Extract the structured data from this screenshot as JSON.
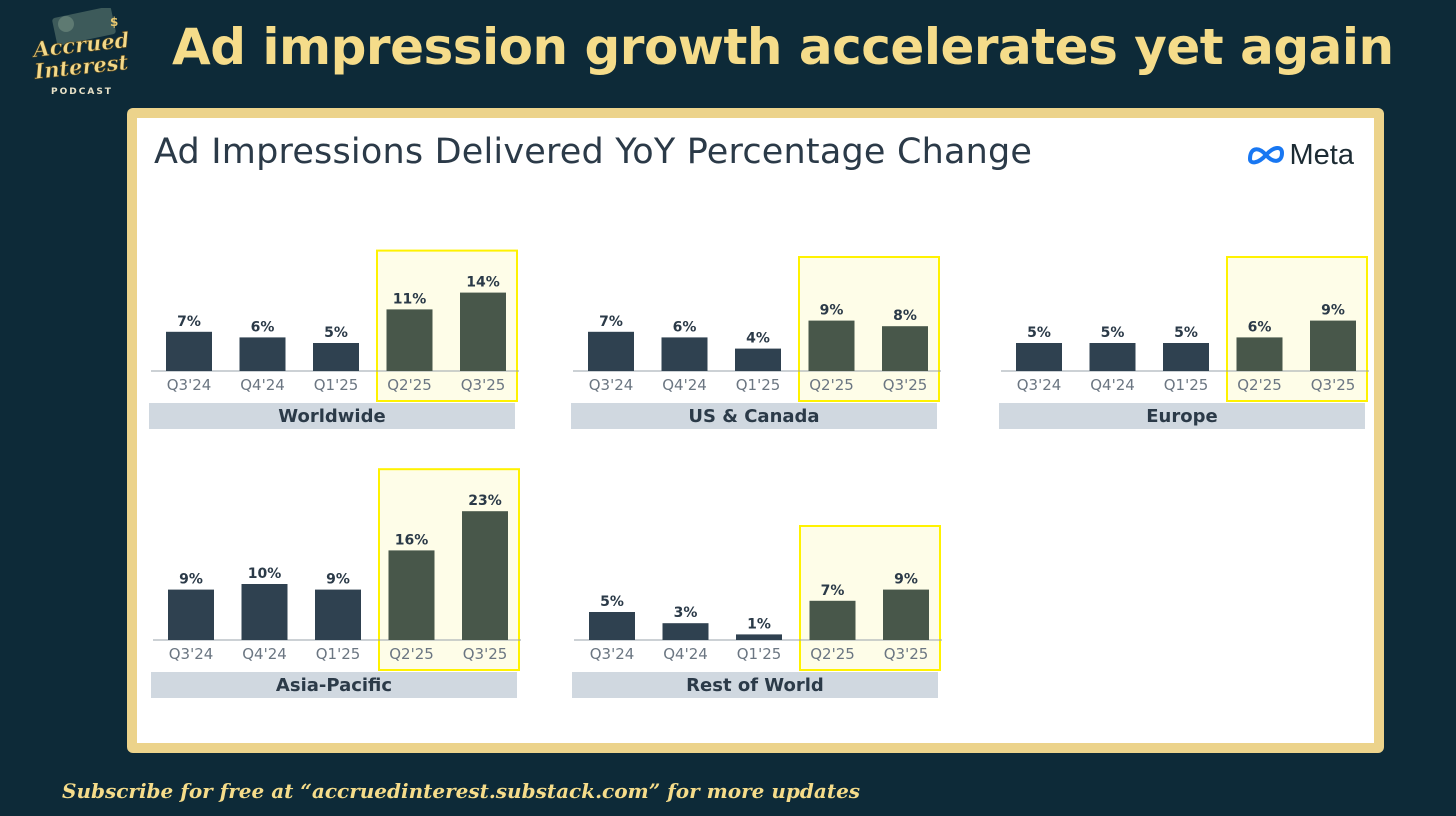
{
  "header": {
    "title": "Ad impression growth accelerates yet again"
  },
  "logo": {
    "line1": "Accrued",
    "line2": "Interest",
    "line3": "PODCAST"
  },
  "card": {
    "title": "Ad Impressions Delivered YoY Percentage Change",
    "brand": "Meta"
  },
  "footer": {
    "text": "Subscribe for free at “accruedinterest.substack.com” for more updates"
  },
  "colors": {
    "background": "#0d2a38",
    "frame": "#ecd38b",
    "bar_normal": "#2f4150",
    "bar_highlight": "#48574a",
    "highlight_fill": "#fefde8",
    "highlight_border": "#fff200",
    "label_band": "#d0d8e0"
  },
  "chart_data": [
    {
      "type": "bar",
      "title": "Worldwide",
      "categories": [
        "Q3'24",
        "Q4'24",
        "Q1'25",
        "Q2'25",
        "Q3'25"
      ],
      "values": [
        7,
        6,
        5,
        11,
        14
      ],
      "labels": [
        "7%",
        "6%",
        "5%",
        "11%",
        "14%"
      ],
      "highlighted": [
        "Q2'25",
        "Q3'25"
      ]
    },
    {
      "type": "bar",
      "title": "US & Canada",
      "categories": [
        "Q3'24",
        "Q4'24",
        "Q1'25",
        "Q2'25",
        "Q3'25"
      ],
      "values": [
        7,
        6,
        4,
        9,
        8
      ],
      "labels": [
        "7%",
        "6%",
        "4%",
        "9%",
        "8%"
      ],
      "highlighted": [
        "Q2'25",
        "Q3'25"
      ]
    },
    {
      "type": "bar",
      "title": "Europe",
      "categories": [
        "Q3'24",
        "Q4'24",
        "Q1'25",
        "Q2'25",
        "Q3'25"
      ],
      "values": [
        5,
        5,
        5,
        6,
        9
      ],
      "labels": [
        "5%",
        "5%",
        "5%",
        "6%",
        "9%"
      ],
      "highlighted": [
        "Q2'25",
        "Q3'25"
      ]
    },
    {
      "type": "bar",
      "title": "Asia-Pacific",
      "categories": [
        "Q3'24",
        "Q4'24",
        "Q1'25",
        "Q2'25",
        "Q3'25"
      ],
      "values": [
        9,
        10,
        9,
        16,
        23
      ],
      "labels": [
        "9%",
        "10%",
        "9%",
        "16%",
        "23%"
      ],
      "highlighted": [
        "Q2'25",
        "Q3'25"
      ]
    },
    {
      "type": "bar",
      "title": "Rest of World",
      "categories": [
        "Q3'24",
        "Q4'24",
        "Q1'25",
        "Q2'25",
        "Q3'25"
      ],
      "values": [
        5,
        3,
        1,
        7,
        9
      ],
      "labels": [
        "5%",
        "3%",
        "1%",
        "7%",
        "9%"
      ],
      "highlighted": [
        "Q2'25",
        "Q3'25"
      ]
    }
  ]
}
